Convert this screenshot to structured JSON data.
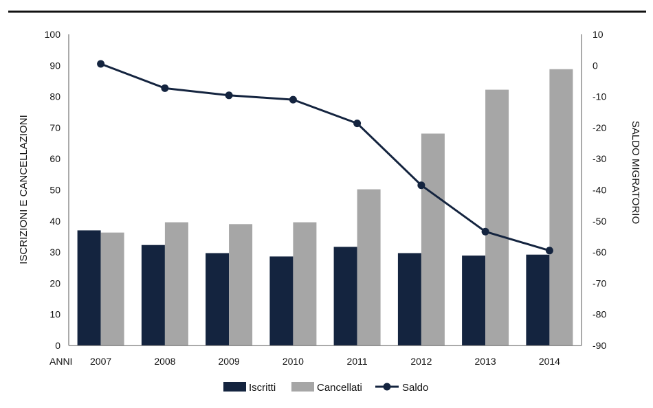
{
  "chart_data": {
    "type": "bar",
    "xlabel": "ANNI",
    "ylabel": "ISCRIZIONI E CANCELLAZIONI",
    "y2label": "SALDO MIGRATORIO",
    "categories": [
      "2007",
      "2008",
      "2009",
      "2010",
      "2011",
      "2012",
      "2013",
      "2014"
    ],
    "ylim": [
      0,
      100
    ],
    "y2lim": [
      -90,
      10
    ],
    "yticks": [
      "0",
      "10",
      "20",
      "30",
      "40",
      "50",
      "60",
      "70",
      "80",
      "90",
      "100"
    ],
    "y2ticks": [
      "-90",
      "-80",
      "-70",
      "-60",
      "-50",
      "-40",
      "-30",
      "-20",
      "-10",
      "0",
      "10"
    ],
    "grid": false,
    "legend_position": "bottom",
    "series": [
      {
        "name": "Iscritti",
        "type": "bar",
        "axis": "left",
        "color": "#14243f",
        "values": [
          37,
          32.3,
          29.7,
          28.6,
          31.7,
          29.7,
          28.9,
          29.2
        ]
      },
      {
        "name": "Cancellati",
        "type": "bar",
        "axis": "left",
        "color": "#a6a6a6",
        "values": [
          36.3,
          39.6,
          39,
          39.6,
          50.2,
          68.1,
          82.2,
          88.8
        ]
      },
      {
        "name": "Saldo",
        "type": "line",
        "axis": "right",
        "color": "#14243f",
        "values": [
          0.5,
          -7.3,
          -9.6,
          -11,
          -18.6,
          -38.5,
          -53.4,
          -59.5
        ]
      }
    ]
  }
}
